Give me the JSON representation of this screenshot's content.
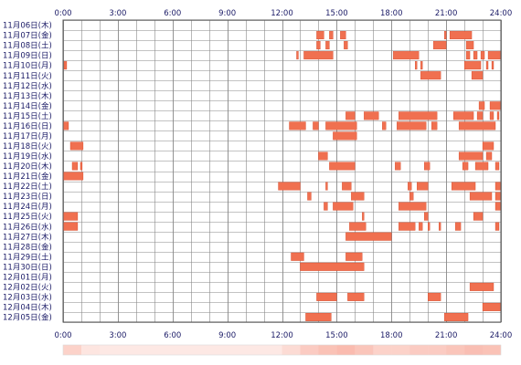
{
  "chart_data": {
    "type": "heatmap",
    "title": "",
    "xlabel": "",
    "ylabel": "",
    "xlim": [
      0,
      24
    ],
    "x_ticks": [
      "0:00",
      "3:00",
      "6:00",
      "9:00",
      "12:00",
      "15:00",
      "18:00",
      "21:00",
      "24:00"
    ],
    "grid": true,
    "bar_color": "#f07050",
    "bar_edge_color": "#cc3311",
    "grid_color": "#888888",
    "unit": "hours (start, end) of activity per day",
    "rows": [
      {
        "label": "11月06日(木)",
        "intervals": []
      },
      {
        "label": "11月07日(金)",
        "intervals": [
          [
            13.9,
            14.3
          ],
          [
            14.6,
            14.8
          ],
          [
            15.2,
            15.5
          ],
          [
            20.9,
            21.0
          ],
          [
            21.2,
            22.4
          ]
        ]
      },
      {
        "label": "11月08日(土)",
        "intervals": [
          [
            13.9,
            14.1
          ],
          [
            14.4,
            14.6
          ],
          [
            15.4,
            15.6
          ],
          [
            20.3,
            21.0
          ],
          [
            22.1,
            22.5
          ]
        ]
      },
      {
        "label": "11月09日(日)",
        "intervals": [
          [
            12.8,
            12.9
          ],
          [
            13.2,
            14.8
          ],
          [
            18.1,
            19.5
          ],
          [
            22.1,
            22.3
          ],
          [
            22.5,
            22.7
          ],
          [
            22.9,
            23.1
          ],
          [
            23.3,
            24.0
          ]
        ]
      },
      {
        "label": "11月10日(月)",
        "intervals": [
          [
            0.05,
            0.2
          ],
          [
            19.3,
            19.4
          ],
          [
            19.6,
            19.7
          ],
          [
            22.0,
            22.9
          ],
          [
            23.2,
            23.3
          ],
          [
            23.5,
            23.6
          ]
        ]
      },
      {
        "label": "11月11日(火)",
        "intervals": [
          [
            19.6,
            20.7
          ],
          [
            22.4,
            23.0
          ]
        ]
      },
      {
        "label": "11月12日(水)",
        "intervals": []
      },
      {
        "label": "11月13日(木)",
        "intervals": []
      },
      {
        "label": "11月14日(金)",
        "intervals": [
          [
            22.8,
            23.1
          ],
          [
            23.4,
            24.0
          ]
        ]
      },
      {
        "label": "11月15日(土)",
        "intervals": [
          [
            15.5,
            16.0
          ],
          [
            16.5,
            17.3
          ],
          [
            18.4,
            20.5
          ],
          [
            21.4,
            22.5
          ],
          [
            22.7,
            23.0
          ],
          [
            23.4,
            23.6
          ],
          [
            23.8,
            23.9
          ]
        ]
      },
      {
        "label": "11月16日(日)",
        "intervals": [
          [
            0.0,
            0.3
          ],
          [
            12.4,
            13.3
          ],
          [
            13.7,
            14.0
          ],
          [
            14.4,
            16.1
          ],
          [
            17.5,
            17.7
          ],
          [
            18.3,
            19.9
          ],
          [
            20.2,
            20.5
          ],
          [
            21.7,
            23.7
          ]
        ]
      },
      {
        "label": "11月17日(月)",
        "intervals": [
          [
            14.8,
            16.1
          ]
        ]
      },
      {
        "label": "11月18日(火)",
        "intervals": [
          [
            0.4,
            1.1
          ],
          [
            23.0,
            23.6
          ]
        ]
      },
      {
        "label": "11月19日(水)",
        "intervals": [
          [
            14.0,
            14.5
          ],
          [
            21.7,
            23.0
          ],
          [
            23.2,
            23.5
          ]
        ]
      },
      {
        "label": "11月20日(木)",
        "intervals": [
          [
            0.5,
            0.8
          ],
          [
            0.95,
            1.05
          ],
          [
            14.6,
            16.0
          ],
          [
            18.2,
            18.5
          ],
          [
            19.8,
            20.1
          ],
          [
            21.9,
            22.2
          ],
          [
            22.6,
            23.3
          ],
          [
            23.7,
            23.9
          ]
        ]
      },
      {
        "label": "11月21日(金)",
        "intervals": [
          [
            0.0,
            1.1
          ]
        ]
      },
      {
        "label": "11月22日(土)",
        "intervals": [
          [
            11.8,
            13.0
          ],
          [
            14.4,
            14.5
          ],
          [
            15.3,
            15.8
          ],
          [
            18.9,
            19.1
          ],
          [
            19.4,
            20.0
          ],
          [
            21.3,
            22.6
          ],
          [
            23.7,
            24.0
          ]
        ]
      },
      {
        "label": "11月23日(日)",
        "intervals": [
          [
            13.4,
            13.6
          ],
          [
            15.8,
            16.5
          ],
          [
            19.0,
            19.2
          ],
          [
            22.3,
            23.5
          ],
          [
            23.7,
            24.0
          ]
        ]
      },
      {
        "label": "11月24日(月)",
        "intervals": [
          [
            14.3,
            14.5
          ],
          [
            14.8,
            15.9
          ],
          [
            18.4,
            19.9
          ],
          [
            23.7,
            24.0
          ]
        ]
      },
      {
        "label": "11月25日(火)",
        "intervals": [
          [
            0.0,
            0.8
          ],
          [
            16.4,
            16.5
          ],
          [
            19.8,
            20.0
          ],
          [
            22.5,
            23.0
          ]
        ]
      },
      {
        "label": "11月26日(水)",
        "intervals": [
          [
            0.0,
            0.8
          ],
          [
            15.7,
            16.6
          ],
          [
            18.4,
            19.3
          ],
          [
            19.5,
            19.7
          ],
          [
            20.0,
            20.1
          ],
          [
            20.6,
            20.7
          ],
          [
            21.5,
            21.8
          ],
          [
            23.7,
            23.9
          ]
        ]
      },
      {
        "label": "11月27日(木)",
        "intervals": [
          [
            15.5,
            18.0
          ]
        ]
      },
      {
        "label": "11月28日(金)",
        "intervals": []
      },
      {
        "label": "11月29日(土)",
        "intervals": [
          [
            12.5,
            13.2
          ],
          [
            15.5,
            16.4
          ]
        ]
      },
      {
        "label": "11月30日(日)",
        "intervals": [
          [
            13.0,
            16.5
          ]
        ]
      },
      {
        "label": "12月01日(月)",
        "intervals": []
      },
      {
        "label": "12月02日(火)",
        "intervals": [
          [
            22.3,
            23.6
          ]
        ]
      },
      {
        "label": "12月03日(水)",
        "intervals": [
          [
            13.9,
            15.0
          ],
          [
            15.6,
            16.5
          ],
          [
            20.0,
            20.7
          ]
        ]
      },
      {
        "label": "12月04日(木)",
        "intervals": [
          [
            23.0,
            24.0
          ]
        ]
      },
      {
        "label": "12月05日(金)",
        "intervals": [
          [
            13.3,
            14.7
          ],
          [
            20.9,
            22.2
          ]
        ]
      }
    ],
    "density_strip": {
      "fill_color": "#f8a898",
      "low_color": "#fde8e4",
      "hourly_activity_share": [
        0.35,
        0.05,
        0.0,
        0.0,
        0.0,
        0.0,
        0.0,
        0.0,
        0.0,
        0.0,
        0.0,
        0.0,
        0.2,
        0.45,
        0.6,
        0.7,
        0.55,
        0.35,
        0.35,
        0.45,
        0.45,
        0.55,
        0.65,
        0.6
      ]
    }
  }
}
